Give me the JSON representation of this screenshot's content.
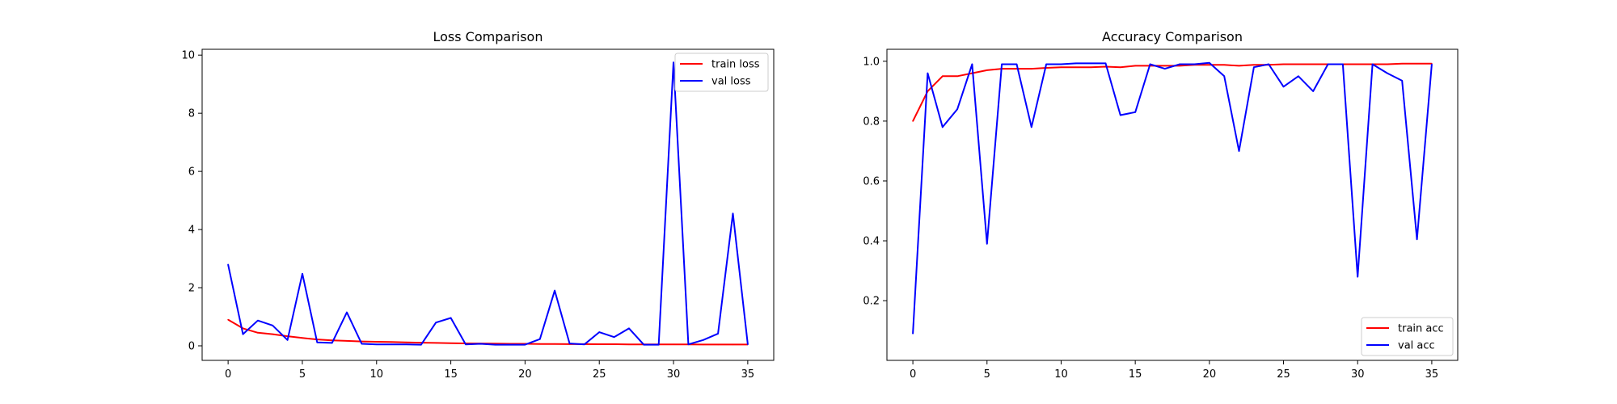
{
  "chart_data": [
    {
      "type": "line",
      "title": "Loss Comparison",
      "xlabel": "",
      "ylabel": "",
      "xlim": [
        0,
        35
      ],
      "ylim": [
        0,
        10
      ],
      "xticks": [
        0,
        5,
        10,
        15,
        20,
        25,
        30,
        35
      ],
      "yticks": [
        0,
        2,
        4,
        6,
        8,
        10
      ],
      "grid": false,
      "legend_position": "top-right",
      "series": [
        {
          "name": "train loss",
          "color": "#ff0000",
          "x": [
            0,
            1,
            2,
            3,
            4,
            5,
            6,
            7,
            8,
            9,
            10,
            11,
            12,
            13,
            14,
            15,
            16,
            17,
            18,
            19,
            20,
            21,
            22,
            23,
            24,
            25,
            26,
            27,
            28,
            29,
            30,
            31,
            32,
            33,
            34,
            35
          ],
          "values": [
            0.9,
            0.6,
            0.45,
            0.4,
            0.33,
            0.27,
            0.22,
            0.19,
            0.17,
            0.15,
            0.14,
            0.13,
            0.12,
            0.11,
            0.1,
            0.09,
            0.085,
            0.08,
            0.075,
            0.07,
            0.07,
            0.065,
            0.065,
            0.06,
            0.06,
            0.055,
            0.055,
            0.05,
            0.05,
            0.05,
            0.05,
            0.05,
            0.045,
            0.045,
            0.045,
            0.045
          ]
        },
        {
          "name": "val loss",
          "color": "#0000ff",
          "x": [
            0,
            1,
            2,
            3,
            4,
            5,
            6,
            7,
            8,
            9,
            10,
            11,
            12,
            13,
            14,
            15,
            16,
            17,
            18,
            19,
            20,
            21,
            22,
            23,
            24,
            25,
            26,
            27,
            28,
            29,
            30,
            31,
            32,
            33,
            34,
            35
          ],
          "values": [
            2.8,
            0.4,
            0.87,
            0.7,
            0.2,
            2.48,
            0.12,
            0.1,
            1.15,
            0.07,
            0.05,
            0.05,
            0.05,
            0.04,
            0.8,
            0.96,
            0.05,
            0.07,
            0.04,
            0.04,
            0.04,
            0.23,
            1.9,
            0.08,
            0.05,
            0.47,
            0.3,
            0.6,
            0.04,
            0.04,
            9.75,
            0.05,
            0.2,
            0.42,
            4.55,
            0.05
          ]
        }
      ]
    },
    {
      "type": "line",
      "title": "Accuracy Comparison",
      "xlabel": "",
      "ylabel": "",
      "xlim": [
        0,
        35
      ],
      "ylim": [
        0.05,
        1.04
      ],
      "xticks": [
        0,
        5,
        10,
        15,
        20,
        25,
        30,
        35
      ],
      "yticks": [
        0.2,
        0.4,
        0.6,
        0.8,
        1.0
      ],
      "ytick_labels": [
        "0.2",
        "0.4",
        "0.6",
        "0.8",
        "1.0"
      ],
      "grid": false,
      "legend_position": "bottom-right",
      "series": [
        {
          "name": "train acc",
          "color": "#ff0000",
          "x": [
            0,
            1,
            2,
            3,
            4,
            5,
            6,
            7,
            8,
            9,
            10,
            11,
            12,
            13,
            14,
            15,
            16,
            17,
            18,
            19,
            20,
            21,
            22,
            23,
            24,
            25,
            26,
            27,
            28,
            29,
            30,
            31,
            32,
            33,
            34,
            35
          ],
          "values": [
            0.8,
            0.9,
            0.95,
            0.95,
            0.96,
            0.97,
            0.975,
            0.975,
            0.975,
            0.978,
            0.98,
            0.98,
            0.98,
            0.982,
            0.98,
            0.985,
            0.985,
            0.985,
            0.985,
            0.988,
            0.988,
            0.988,
            0.985,
            0.988,
            0.988,
            0.99,
            0.99,
            0.99,
            0.99,
            0.99,
            0.99,
            0.99,
            0.99,
            0.992,
            0.992,
            0.992
          ]
        },
        {
          "name": "val acc",
          "color": "#0000ff",
          "x": [
            0,
            1,
            2,
            3,
            4,
            5,
            6,
            7,
            8,
            9,
            10,
            11,
            12,
            13,
            14,
            15,
            16,
            17,
            18,
            19,
            20,
            21,
            22,
            23,
            24,
            25,
            26,
            27,
            28,
            29,
            30,
            31,
            32,
            33,
            34,
            35
          ],
          "values": [
            0.09,
            0.96,
            0.78,
            0.84,
            0.99,
            0.39,
            0.99,
            0.99,
            0.78,
            0.99,
            0.99,
            0.993,
            0.993,
            0.993,
            0.82,
            0.83,
            0.99,
            0.975,
            0.99,
            0.99,
            0.995,
            0.95,
            0.7,
            0.98,
            0.99,
            0.915,
            0.95,
            0.9,
            0.99,
            0.99,
            0.28,
            0.99,
            0.96,
            0.935,
            0.405,
            0.99
          ]
        }
      ]
    }
  ]
}
